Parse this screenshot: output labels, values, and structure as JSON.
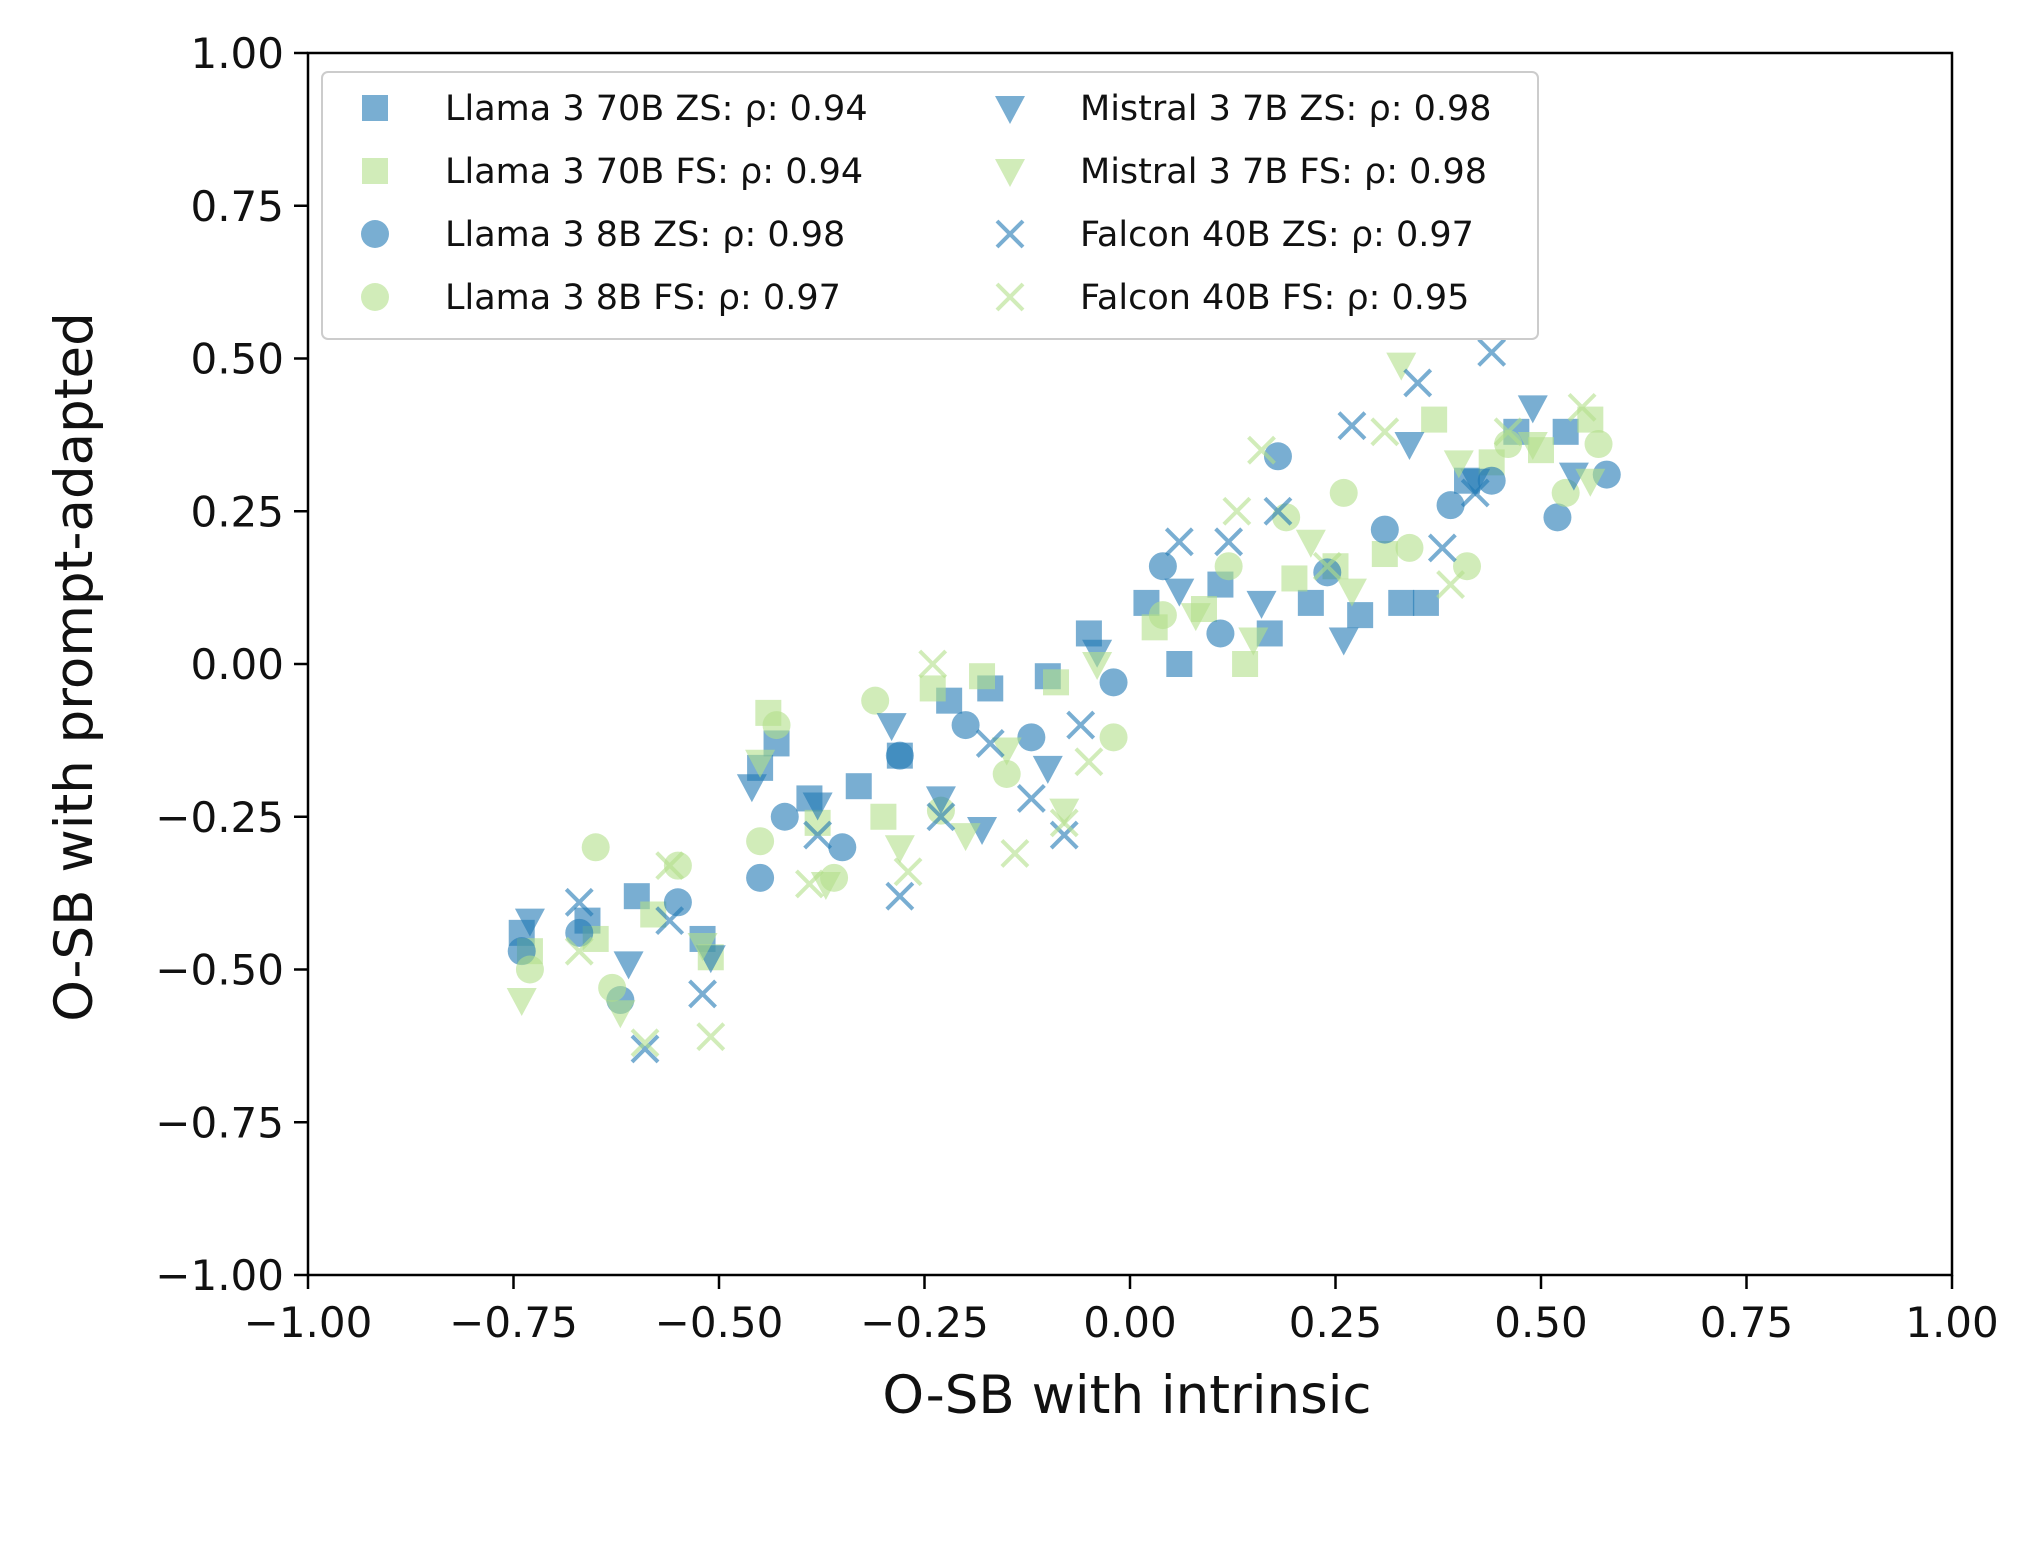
{
  "chart_data": {
    "type": "scatter",
    "title": "",
    "xlabel": "O-SB with intrinsic",
    "ylabel": "O-SB with prompt-adapted",
    "xlim": [
      -1.0,
      1.0
    ],
    "ylim": [
      -1.0,
      1.0
    ],
    "x_ticks": [
      "−1.00",
      "−0.75",
      "−0.50",
      "−0.25",
      "0.00",
      "0.25",
      "0.50",
      "0.75",
      "1.00"
    ],
    "y_ticks": [
      "−1.00",
      "−0.75",
      "−0.50",
      "−0.25",
      "0.00",
      "0.25",
      "0.50",
      "0.75",
      "1.00"
    ],
    "grid": false,
    "legend_position": "top-left",
    "legend_columns": 2,
    "series": [
      {
        "name": "Llama 3 70B ZS:  ρ: 0.94",
        "marker": "square",
        "color": "#1f78b4",
        "points": [
          [
            -0.74,
            -0.44
          ],
          [
            -0.66,
            -0.42
          ],
          [
            -0.6,
            -0.38
          ],
          [
            -0.52,
            -0.45
          ],
          [
            -0.45,
            -0.17
          ],
          [
            -0.43,
            -0.13
          ],
          [
            -0.39,
            -0.22
          ],
          [
            -0.33,
            -0.2
          ],
          [
            -0.28,
            -0.15
          ],
          [
            -0.22,
            -0.06
          ],
          [
            -0.17,
            -0.04
          ],
          [
            -0.1,
            -0.02
          ],
          [
            -0.05,
            0.05
          ],
          [
            0.02,
            0.1
          ],
          [
            0.06,
            0.0
          ],
          [
            0.11,
            0.13
          ],
          [
            0.17,
            0.05
          ],
          [
            0.22,
            0.1
          ],
          [
            0.28,
            0.08
          ],
          [
            0.33,
            0.1
          ],
          [
            0.36,
            0.1
          ],
          [
            0.41,
            0.3
          ],
          [
            0.47,
            0.38
          ],
          [
            0.53,
            0.38
          ]
        ]
      },
      {
        "name": "Llama 3 70B FS:  ρ: 0.94",
        "marker": "square",
        "color": "#b2df8a",
        "points": [
          [
            -0.73,
            -0.47
          ],
          [
            -0.65,
            -0.45
          ],
          [
            -0.58,
            -0.41
          ],
          [
            -0.51,
            -0.48
          ],
          [
            -0.44,
            -0.08
          ],
          [
            -0.38,
            -0.26
          ],
          [
            -0.3,
            -0.25
          ],
          [
            -0.24,
            -0.04
          ],
          [
            -0.18,
            -0.02
          ],
          [
            -0.09,
            -0.03
          ],
          [
            0.03,
            0.06
          ],
          [
            0.09,
            0.09
          ],
          [
            0.14,
            0.0
          ],
          [
            0.2,
            0.14
          ],
          [
            0.25,
            0.16
          ],
          [
            0.31,
            0.18
          ],
          [
            0.37,
            0.4
          ],
          [
            0.44,
            0.33
          ],
          [
            0.5,
            0.35
          ],
          [
            0.56,
            0.4
          ]
        ]
      },
      {
        "name": "Llama 3 8B ZS:  ρ: 0.98",
        "marker": "circle",
        "color": "#1f78b4",
        "points": [
          [
            -0.74,
            -0.47
          ],
          [
            -0.67,
            -0.44
          ],
          [
            -0.62,
            -0.55
          ],
          [
            -0.55,
            -0.39
          ],
          [
            -0.45,
            -0.35
          ],
          [
            -0.42,
            -0.25
          ],
          [
            -0.35,
            -0.3
          ],
          [
            -0.28,
            -0.15
          ],
          [
            -0.2,
            -0.1
          ],
          [
            -0.12,
            -0.12
          ],
          [
            -0.02,
            -0.03
          ],
          [
            0.04,
            0.16
          ],
          [
            0.11,
            0.05
          ],
          [
            0.18,
            0.34
          ],
          [
            0.24,
            0.15
          ],
          [
            0.31,
            0.22
          ],
          [
            0.39,
            0.26
          ],
          [
            0.44,
            0.3
          ],
          [
            0.52,
            0.24
          ],
          [
            0.58,
            0.31
          ]
        ]
      },
      {
        "name": "Llama 3 8B FS:  ρ: 0.97",
        "marker": "circle",
        "color": "#b2df8a",
        "points": [
          [
            -0.73,
            -0.5
          ],
          [
            -0.65,
            -0.3
          ],
          [
            -0.63,
            -0.53
          ],
          [
            -0.55,
            -0.33
          ],
          [
            -0.45,
            -0.29
          ],
          [
            -0.43,
            -0.1
          ],
          [
            -0.36,
            -0.35
          ],
          [
            -0.31,
            -0.06
          ],
          [
            -0.23,
            -0.24
          ],
          [
            -0.15,
            -0.18
          ],
          [
            -0.02,
            -0.12
          ],
          [
            0.04,
            0.08
          ],
          [
            0.12,
            0.16
          ],
          [
            0.19,
            0.24
          ],
          [
            0.26,
            0.28
          ],
          [
            0.34,
            0.19
          ],
          [
            0.41,
            0.16
          ],
          [
            0.46,
            0.36
          ],
          [
            0.53,
            0.28
          ],
          [
            0.57,
            0.36
          ]
        ]
      },
      {
        "name": "Mistral 3 7B ZS:  ρ: 0.98",
        "marker": "triangle-down",
        "color": "#1f78b4",
        "points": [
          [
            -0.73,
            -0.42
          ],
          [
            -0.61,
            -0.49
          ],
          [
            -0.51,
            -0.48
          ],
          [
            -0.46,
            -0.2
          ],
          [
            -0.38,
            -0.23
          ],
          [
            -0.29,
            -0.1
          ],
          [
            -0.23,
            -0.22
          ],
          [
            -0.18,
            -0.27
          ],
          [
            -0.1,
            -0.17
          ],
          [
            -0.04,
            0.02
          ],
          [
            0.06,
            0.12
          ],
          [
            0.16,
            0.1
          ],
          [
            0.26,
            0.04
          ],
          [
            0.34,
            0.36
          ],
          [
            0.42,
            0.3
          ],
          [
            0.49,
            0.42
          ],
          [
            0.54,
            0.31
          ]
        ]
      },
      {
        "name": "Mistral 3 7B FS:  ρ: 0.98",
        "marker": "triangle-down",
        "color": "#b2df8a",
        "points": [
          [
            -0.74,
            -0.55
          ],
          [
            -0.62,
            -0.57
          ],
          [
            -0.52,
            -0.46
          ],
          [
            -0.45,
            -0.16
          ],
          [
            -0.37,
            -0.36
          ],
          [
            -0.28,
            -0.3
          ],
          [
            -0.2,
            -0.28
          ],
          [
            -0.15,
            -0.14
          ],
          [
            -0.08,
            -0.24
          ],
          [
            -0.04,
            0.0
          ],
          [
            0.08,
            0.08
          ],
          [
            0.15,
            0.04
          ],
          [
            0.22,
            0.2
          ],
          [
            0.27,
            0.12
          ],
          [
            0.33,
            0.49
          ],
          [
            0.4,
            0.33
          ],
          [
            0.49,
            0.36
          ],
          [
            0.56,
            0.3
          ]
        ]
      },
      {
        "name": "Falcon 40B ZS:  ρ: 0.97",
        "marker": "x",
        "color": "#1f78b4",
        "points": [
          [
            -0.67,
            -0.39
          ],
          [
            -0.59,
            -0.63
          ],
          [
            -0.56,
            -0.42
          ],
          [
            -0.52,
            -0.54
          ],
          [
            -0.38,
            -0.28
          ],
          [
            -0.28,
            -0.38
          ],
          [
            -0.23,
            -0.25
          ],
          [
            -0.17,
            -0.13
          ],
          [
            -0.12,
            -0.22
          ],
          [
            -0.08,
            -0.28
          ],
          [
            -0.06,
            -0.1
          ],
          [
            0.06,
            0.2
          ],
          [
            0.12,
            0.2
          ],
          [
            0.18,
            0.25
          ],
          [
            0.27,
            0.39
          ],
          [
            0.35,
            0.46
          ],
          [
            0.44,
            0.51
          ],
          [
            0.42,
            0.28
          ],
          [
            0.38,
            0.19
          ]
        ]
      },
      {
        "name": "Falcon 40B FS:  ρ: 0.95",
        "marker": "x",
        "color": "#b2df8a",
        "points": [
          [
            -0.67,
            -0.47
          ],
          [
            -0.59,
            -0.62
          ],
          [
            -0.56,
            -0.33
          ],
          [
            -0.51,
            -0.61
          ],
          [
            -0.39,
            -0.36
          ],
          [
            -0.27,
            -0.34
          ],
          [
            -0.24,
            0.0
          ],
          [
            -0.14,
            -0.31
          ],
          [
            -0.08,
            -0.26
          ],
          [
            -0.05,
            -0.16
          ],
          [
            0.13,
            0.25
          ],
          [
            0.16,
            0.35
          ],
          [
            0.24,
            0.16
          ],
          [
            0.31,
            0.38
          ],
          [
            0.39,
            0.13
          ],
          [
            0.46,
            0.38
          ],
          [
            0.55,
            0.42
          ]
        ]
      }
    ]
  }
}
